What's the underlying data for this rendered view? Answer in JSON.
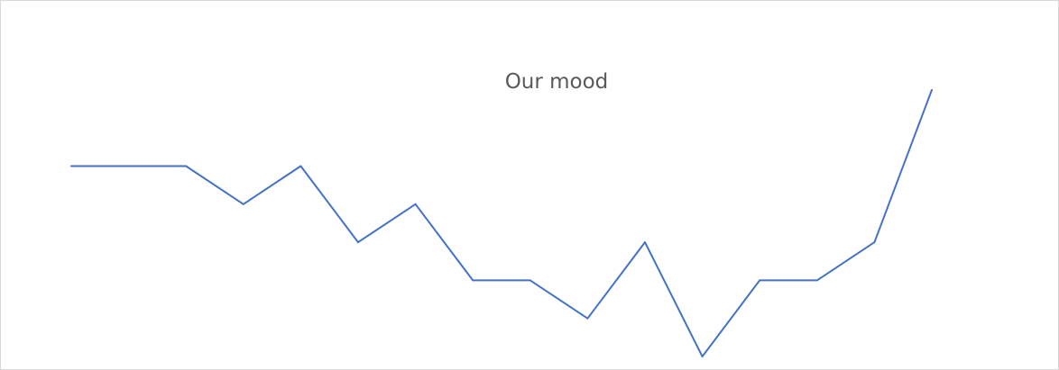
{
  "chart_data": {
    "type": "line",
    "title": "Our mood",
    "xlabel": "",
    "ylabel": "",
    "grid": false,
    "legend": "none",
    "axes_visible": false,
    "ylim": [
      0,
      7.3
    ],
    "series": [
      {
        "color": "#4472C4",
        "values": [
          5,
          5,
          5,
          4,
          5,
          3,
          4,
          2,
          2,
          1,
          3,
          0,
          2,
          2,
          3,
          7
        ]
      }
    ]
  }
}
